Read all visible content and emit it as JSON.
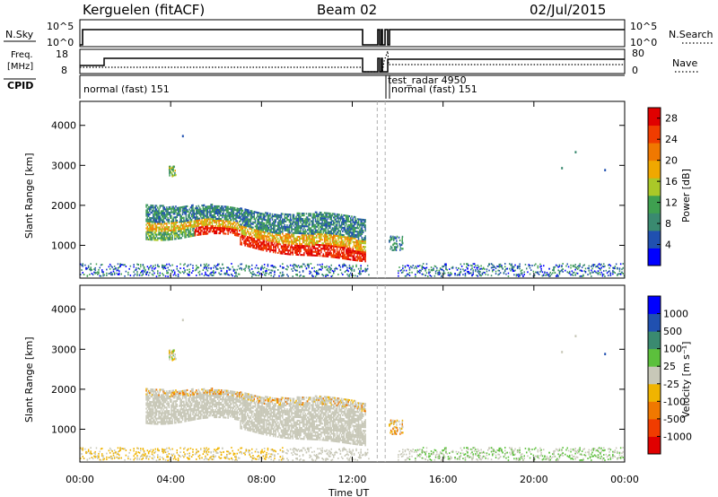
{
  "header": {
    "station": "Kerguelen (fitACF)",
    "beam": "Beam 02",
    "date": "02/Jul/2015"
  },
  "panels": {
    "nsky": {
      "left_label": "N.Sky",
      "right_label": "N.Search",
      "left_ticks": [
        "10^5",
        "10^0"
      ],
      "right_ticks": [
        "10^5",
        "10^0"
      ]
    },
    "freq": {
      "left_label": "Freq.",
      "left_unit": "[MHz]",
      "right_label": "Nave",
      "left_ticks": [
        "18",
        "8"
      ],
      "right_ticks": [
        "80",
        "0"
      ]
    },
    "cpid": {
      "label": "CPID",
      "modes": [
        {
          "label": "normal (fast) 151"
        },
        {
          "label": "test_radar 4950"
        },
        {
          "label": "normal (fast) 151"
        }
      ]
    }
  },
  "colors": {
    "power": [
      "#0000ff",
      "#2050b0",
      "#3a8a70",
      "#3fa050",
      "#aac828",
      "#f0a800",
      "#f07800",
      "#f03c00",
      "#e00000"
    ],
    "velocity": [
      "#e00000",
      "#f03c00",
      "#f07800",
      "#f0b400",
      "#c8c8b8",
      "#5cc03c",
      "#3a8a70",
      "#2050b0",
      "#0000ff"
    ],
    "ground": "#c8c8c0",
    "dashed": "#b0b0b0"
  },
  "chart_data": [
    {
      "type": "heatmap",
      "name": "power",
      "ylabel": "Slant Range [km]",
      "yticks": [
        1000,
        2000,
        3000,
        4000
      ],
      "ylim": [
        180,
        4600
      ],
      "xlim_hours": [
        0,
        24
      ],
      "colorbar": {
        "label": "Power [dB]",
        "ticks": [
          4,
          8,
          12,
          16,
          20,
          24,
          28
        ],
        "range": [
          0,
          30
        ]
      }
    },
    {
      "type": "heatmap",
      "name": "velocity",
      "ylabel": "Slant Range [km]",
      "yticks": [
        1000,
        2000,
        3000,
        4000
      ],
      "ylim": [
        180,
        4600
      ],
      "xlim_hours": [
        0,
        24
      ],
      "xticks": [
        "00:00",
        "04:00",
        "08:00",
        "12:00",
        "16:00",
        "20:00",
        "00:00"
      ],
      "xlabel": "Time UT",
      "colorbar": {
        "label": "Velocity [m s⁻¹]",
        "ticks": [
          "1000",
          "500",
          "100",
          "25",
          "-25",
          "-100",
          "-500",
          "-1000"
        ]
      }
    }
  ]
}
